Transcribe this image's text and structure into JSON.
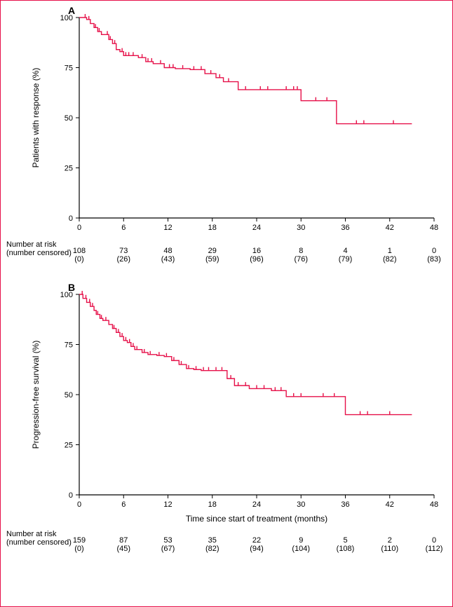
{
  "figure": {
    "border_color": "#e61049",
    "background_color": "#ffffff"
  },
  "common": {
    "xlim": [
      0,
      48
    ],
    "xtick_step": 6,
    "xticks": [
      0,
      6,
      12,
      18,
      24,
      30,
      36,
      42,
      48
    ],
    "ylim": [
      0,
      100
    ],
    "ytick_step": 25,
    "yticks": [
      0,
      25,
      50,
      75,
      100
    ],
    "line_color": "#e61049",
    "line_width": 1.4,
    "censor_color": "#e61049",
    "censor_tick_height": 5,
    "axis_color": "#000000",
    "tick_font_size": 11,
    "label_font_size": 12,
    "risk_font_size": 11,
    "risk_row_labels": [
      "Number at risk",
      "(number censored)"
    ],
    "x_axis_label": "Time since start of treatment (months)"
  },
  "panel_a": {
    "panel_letter": "A",
    "y_label": "Patients with response (%)",
    "risk_n": [
      108,
      73,
      48,
      29,
      16,
      8,
      4,
      1,
      0
    ],
    "risk_cens": [
      0,
      26,
      43,
      59,
      96,
      76,
      79,
      82,
      83
    ],
    "km": [
      [
        0,
        100
      ],
      [
        1.0,
        100
      ],
      [
        1.0,
        99
      ],
      [
        1.5,
        99
      ],
      [
        1.5,
        97
      ],
      [
        2.0,
        97
      ],
      [
        2.0,
        95
      ],
      [
        2.5,
        95
      ],
      [
        2.5,
        93
      ],
      [
        3.0,
        93
      ],
      [
        3.0,
        91.5
      ],
      [
        3.5,
        91.5
      ],
      [
        3.5,
        91.5
      ],
      [
        4.0,
        91.5
      ],
      [
        4.0,
        89
      ],
      [
        4.5,
        89
      ],
      [
        4.5,
        87
      ],
      [
        5.0,
        87
      ],
      [
        5.0,
        84
      ],
      [
        5.5,
        84
      ],
      [
        5.5,
        83
      ],
      [
        6.0,
        83
      ],
      [
        6.0,
        81
      ],
      [
        7.0,
        81
      ],
      [
        7.0,
        81
      ],
      [
        8.0,
        81
      ],
      [
        8.0,
        80
      ],
      [
        9.0,
        80
      ],
      [
        9.0,
        78
      ],
      [
        10,
        78
      ],
      [
        10,
        77
      ],
      [
        11.5,
        77
      ],
      [
        11.5,
        75
      ],
      [
        13.0,
        75
      ],
      [
        13.0,
        74.5
      ],
      [
        15.0,
        74.5
      ],
      [
        15.0,
        74
      ],
      [
        17.0,
        74
      ],
      [
        17.0,
        72
      ],
      [
        18.5,
        72
      ],
      [
        18.5,
        70
      ],
      [
        19.5,
        70
      ],
      [
        19.5,
        68
      ],
      [
        21.5,
        68
      ],
      [
        21.5,
        64
      ],
      [
        23.5,
        64
      ],
      [
        23.5,
        64
      ],
      [
        26,
        64
      ],
      [
        26,
        64
      ],
      [
        30,
        64
      ],
      [
        30,
        58.5
      ],
      [
        34.8,
        58.5
      ],
      [
        34.8,
        47
      ],
      [
        40,
        47
      ],
      [
        40,
        47
      ],
      [
        45,
        47
      ]
    ],
    "censors": [
      [
        0.8,
        100
      ],
      [
        1.3,
        99
      ],
      [
        2.2,
        95
      ],
      [
        2.7,
        93
      ],
      [
        3.8,
        91.5
      ],
      [
        4.2,
        89
      ],
      [
        4.8,
        87
      ],
      [
        5.8,
        83
      ],
      [
        6.3,
        81
      ],
      [
        6.7,
        81
      ],
      [
        7.3,
        81
      ],
      [
        8.5,
        80
      ],
      [
        9.3,
        78
      ],
      [
        9.8,
        78
      ],
      [
        11.0,
        77
      ],
      [
        12.2,
        75
      ],
      [
        12.7,
        75
      ],
      [
        14.0,
        74.5
      ],
      [
        15.5,
        74
      ],
      [
        16.5,
        74
      ],
      [
        17.8,
        72
      ],
      [
        19.0,
        70
      ],
      [
        20.2,
        68
      ],
      [
        22.5,
        64
      ],
      [
        24.5,
        64
      ],
      [
        25.5,
        64
      ],
      [
        28.0,
        64
      ],
      [
        29.0,
        64
      ],
      [
        29.5,
        64
      ],
      [
        32.0,
        58.5
      ],
      [
        33.5,
        58.5
      ],
      [
        37.5,
        47
      ],
      [
        38.5,
        47
      ],
      [
        42.5,
        47
      ]
    ]
  },
  "panel_b": {
    "panel_letter": "B",
    "y_label": "Progression-free survival (%)",
    "risk_n": [
      159,
      87,
      53,
      35,
      22,
      9,
      5,
      2,
      0
    ],
    "risk_cens": [
      0,
      45,
      67,
      82,
      94,
      104,
      108,
      110,
      112
    ],
    "km": [
      [
        0,
        100
      ],
      [
        0.5,
        100
      ],
      [
        0.5,
        98
      ],
      [
        1.0,
        98
      ],
      [
        1.0,
        96
      ],
      [
        1.5,
        96
      ],
      [
        1.5,
        94
      ],
      [
        2.0,
        94
      ],
      [
        2.0,
        92
      ],
      [
        2.3,
        92
      ],
      [
        2.3,
        90
      ],
      [
        2.8,
        90
      ],
      [
        2.8,
        88
      ],
      [
        3.2,
        88
      ],
      [
        3.2,
        87
      ],
      [
        3.5,
        87
      ],
      [
        3.5,
        87
      ],
      [
        4.0,
        87
      ],
      [
        4.0,
        85
      ],
      [
        4.5,
        85
      ],
      [
        4.5,
        83
      ],
      [
        5.0,
        83
      ],
      [
        5.0,
        81
      ],
      [
        5.5,
        81
      ],
      [
        5.5,
        79
      ],
      [
        6.0,
        79
      ],
      [
        6.0,
        77
      ],
      [
        6.5,
        77
      ],
      [
        6.5,
        76
      ],
      [
        7.0,
        76
      ],
      [
        7.0,
        74
      ],
      [
        7.5,
        74
      ],
      [
        7.5,
        72.5
      ],
      [
        8.5,
        72.5
      ],
      [
        8.5,
        71
      ],
      [
        9.3,
        71
      ],
      [
        9.3,
        70
      ],
      [
        10.5,
        70
      ],
      [
        10.5,
        69.5
      ],
      [
        11.5,
        69.5
      ],
      [
        11.5,
        69
      ],
      [
        12.5,
        69
      ],
      [
        12.5,
        67
      ],
      [
        13.5,
        67
      ],
      [
        13.5,
        65
      ],
      [
        14.5,
        65
      ],
      [
        14.5,
        63
      ],
      [
        15.5,
        63
      ],
      [
        15.5,
        62.5
      ],
      [
        16.5,
        62.5
      ],
      [
        16.5,
        62
      ],
      [
        18,
        62
      ],
      [
        18,
        62
      ],
      [
        20,
        62
      ],
      [
        20,
        58
      ],
      [
        21,
        58
      ],
      [
        21,
        54.5
      ],
      [
        23,
        54.5
      ],
      [
        23,
        53
      ],
      [
        26,
        53
      ],
      [
        26,
        52
      ],
      [
        28,
        52
      ],
      [
        28,
        49
      ],
      [
        31,
        49
      ],
      [
        31,
        49
      ],
      [
        36,
        49
      ],
      [
        36,
        40
      ],
      [
        40,
        40
      ],
      [
        40,
        40
      ],
      [
        45,
        40
      ]
    ],
    "censors": [
      [
        0.4,
        100
      ],
      [
        0.9,
        98
      ],
      [
        1.4,
        96
      ],
      [
        1.8,
        94
      ],
      [
        2.5,
        90
      ],
      [
        3.0,
        88
      ],
      [
        3.6,
        87
      ],
      [
        4.7,
        83
      ],
      [
        5.3,
        81
      ],
      [
        5.8,
        79
      ],
      [
        6.3,
        77
      ],
      [
        6.8,
        76
      ],
      [
        7.3,
        74
      ],
      [
        7.8,
        72.5
      ],
      [
        8.8,
        71
      ],
      [
        9.6,
        70
      ],
      [
        10.8,
        69.5
      ],
      [
        11.8,
        69
      ],
      [
        12.8,
        67
      ],
      [
        13.8,
        65
      ],
      [
        14.8,
        63
      ],
      [
        15.8,
        62.5
      ],
      [
        16.8,
        62
      ],
      [
        17.5,
        62
      ],
      [
        18.5,
        62
      ],
      [
        19.3,
        62
      ],
      [
        20.5,
        58
      ],
      [
        21.5,
        54.5
      ],
      [
        22.5,
        54.5
      ],
      [
        24.0,
        53
      ],
      [
        25.0,
        53
      ],
      [
        26.5,
        52
      ],
      [
        27.3,
        52
      ],
      [
        29.0,
        49
      ],
      [
        30.0,
        49
      ],
      [
        33.0,
        49
      ],
      [
        34.5,
        49
      ],
      [
        38.0,
        40
      ],
      [
        39.0,
        40
      ],
      [
        42.0,
        40
      ]
    ]
  }
}
